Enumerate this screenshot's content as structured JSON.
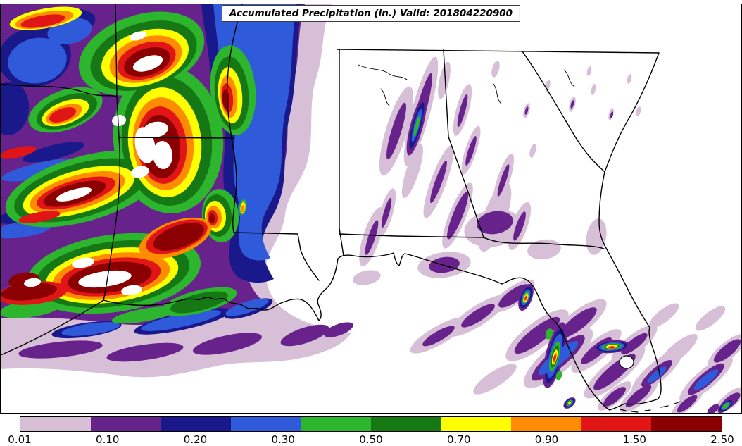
{
  "title": "Accumulated Precipitation (in.) Valid: 201804220900",
  "colorbar": {
    "ticks": [
      "0.01",
      "0.10",
      "0.20",
      "0.30",
      "0.50",
      "0.70",
      "0.90",
      "1.50",
      "2.50"
    ],
    "segment_colors": [
      "#d8bfd8",
      "#68228b",
      "#19198c",
      "#2f5ad9",
      "#2eb52e",
      "#157815",
      "#ffff00",
      "#ff8c00",
      "#e11515",
      "#8b0000"
    ],
    "over_range_color": "#ffffff",
    "units": "in."
  },
  "map": {
    "region": "Southeastern United States and Gulf of Mexico",
    "background_color": "#ffffff",
    "border_color": "#000000",
    "states_visible": [
      "Oklahoma",
      "Arkansas",
      "Texas",
      "Louisiana",
      "Mississippi",
      "Tennessee",
      "Alabama",
      "Georgia",
      "South Carolina",
      "North Carolina",
      "Florida"
    ]
  },
  "chart_data": {
    "type": "heatmap",
    "title": "Accumulated Precipitation (in.) Valid: 201804220900",
    "variable": "Accumulated Precipitation",
    "units": "in.",
    "valid_time": "201804220900",
    "levels": [
      0.01,
      0.1,
      0.2,
      0.3,
      0.5,
      0.7,
      0.9,
      1.5,
      2.5
    ],
    "palette": [
      "#d8bfd8",
      "#68228b",
      "#19198c",
      "#2f5ad9",
      "#2eb52e",
      "#157815",
      "#ffff00",
      "#ff8c00",
      "#e11515",
      "#8b0000"
    ],
    "over_range_color": "#ffffff",
    "legend_position": "bottom",
    "features": [
      {
        "area": "Arkansas / northern Louisiana / western Mississippi",
        "description": "large swirling region of heavy precipitation with banded rainbow contours; cores exceed 2.50 in (white patches ringed by dark red)"
      },
      {
        "area": "southern Louisiana coast and adjacent Gulf",
        "description": "heavy band 0.50-2.50 in tapering southward into 0.01-0.30 in streaks over the Gulf"
      },
      {
        "area": "eastern Mississippi / Alabama / Georgia",
        "description": "narrow NNE-oriented light streaks, mostly 0.01-0.20 in, with one small 0.30-0.70 in cell in central Alabama and a tiny 0.70-0.90 in cell on the lower Mississippi River"
      },
      {
        "area": "Florida peninsula and nearby Gulf/Atlantic",
        "description": "SW-NE bands of 0.01-0.20 in with isolated intense cells of 0.90-2.50 in along the west coast and far southeast corner"
      },
      {
        "area": "Carolinas",
        "description": "mostly dry; isolated 0.01-0.10 in specks"
      }
    ]
  }
}
